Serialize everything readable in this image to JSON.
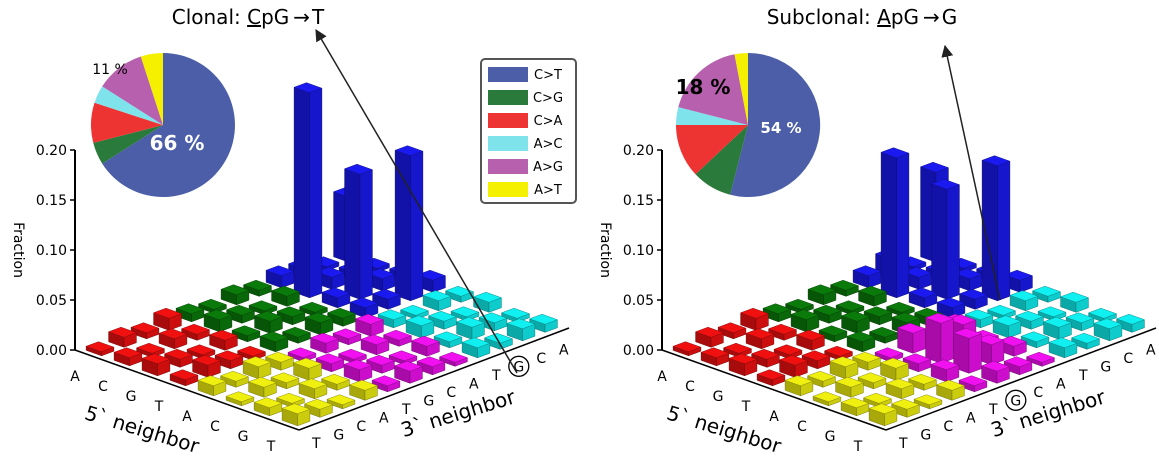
{
  "legend": {
    "items": [
      {
        "label": "C>T",
        "color": "#4b5ea7"
      },
      {
        "label": "C>G",
        "color": "#2a7a3b"
      },
      {
        "label": "C>A",
        "color": "#ee3333"
      },
      {
        "label": "A>C",
        "color": "#7fe3ec"
      },
      {
        "label": "A>G",
        "color": "#b760ad"
      },
      {
        "label": "A>T",
        "color": "#f4f000"
      }
    ]
  },
  "chart_data": [
    {
      "type": "bar3d",
      "title_prefix": "Clonal: ",
      "title_underlined": "C",
      "title_rest": "pG",
      "title_arrow": "→",
      "title_target": "T",
      "ylabel": "Fraction",
      "xlabel": "5` neighbor",
      "zlabel": "3` neighbor",
      "y_ticks": [
        "0.00",
        "0.05",
        "0.10",
        "0.15",
        "0.20"
      ],
      "ylim": [
        0,
        0.2
      ],
      "five_prime_ticks": [
        "A",
        "C",
        "G",
        "T",
        "A",
        "C",
        "G",
        "T"
      ],
      "three_prime_ticks": [
        "T",
        "G",
        "C",
        "A",
        "T",
        "G",
        "C",
        "A",
        "T",
        "G",
        "C",
        "A"
      ],
      "highlight_tick": "G",
      "pie": {
        "slices": [
          {
            "label": "C>T",
            "value": 66,
            "color": "#4b5ea7"
          },
          {
            "label": "C>G",
            "value": 5,
            "color": "#2a7a3b"
          },
          {
            "label": "C>A",
            "value": 9,
            "color": "#ee3333"
          },
          {
            "label": "A>C",
            "value": 4,
            "color": "#7fe3ec"
          },
          {
            "label": "A>G",
            "value": 11,
            "color": "#b760ad"
          },
          {
            "label": "A>T",
            "value": 5,
            "color": "#f4f000"
          }
        ],
        "label_main": "66 %",
        "label_secondary": "11 %"
      },
      "peaks": [
        {
          "five": "C",
          "three": "G",
          "value": 0.205
        },
        {
          "five": "G",
          "three": "G",
          "value": 0.125
        },
        {
          "five": "T",
          "three": "G",
          "value": 0.145
        },
        {
          "five": "A",
          "three": "G",
          "value": 0.065
        },
        {
          "five": "T",
          "three": "T",
          "value": 0.01
        },
        {
          "five": "A",
          "three": "A",
          "value": 0.01
        }
      ]
    },
    {
      "type": "bar3d",
      "title_prefix": "Subclonal: ",
      "title_underlined": "A",
      "title_rest": "pG",
      "title_arrow": "→",
      "title_target": "G",
      "ylabel": "Fraction",
      "xlabel": "5` neighbor",
      "zlabel": "3` neighbor",
      "y_ticks": [
        "0.00",
        "0.05",
        "0.10",
        "0.15",
        "0.20"
      ],
      "ylim": [
        0,
        0.2
      ],
      "five_prime_ticks": [
        "A",
        "C",
        "G",
        "T",
        "A",
        "C",
        "G",
        "T"
      ],
      "three_prime_ticks": [
        "T",
        "G",
        "C",
        "A",
        "T",
        "G",
        "C",
        "A",
        "T",
        "G",
        "C",
        "A"
      ],
      "highlight_tick": "G",
      "pie": {
        "slices": [
          {
            "label": "C>T",
            "value": 54,
            "color": "#4b5ea7"
          },
          {
            "label": "C>G",
            "value": 9,
            "color": "#2a7a3b"
          },
          {
            "label": "C>A",
            "value": 12,
            "color": "#ee3333"
          },
          {
            "label": "A>C",
            "value": 4,
            "color": "#7fe3ec"
          },
          {
            "label": "A>G",
            "value": 18,
            "color": "#b760ad"
          },
          {
            "label": "A>T",
            "value": 3,
            "color": "#f4f000"
          }
        ],
        "label_main": "54 %",
        "label_secondary": "18 %"
      },
      "peaks": [
        {
          "five": "C",
          "three": "G",
          "value": 0.14
        },
        {
          "five": "G",
          "three": "G",
          "value": 0.11
        },
        {
          "five": "T",
          "three": "G",
          "value": 0.135
        },
        {
          "five": "A",
          "three": "G",
          "value": 0.09
        },
        {
          "five": "T",
          "three": "T",
          "value": 0.01
        },
        {
          "five": "A",
          "three": "A",
          "value": 0.02
        }
      ]
    }
  ]
}
